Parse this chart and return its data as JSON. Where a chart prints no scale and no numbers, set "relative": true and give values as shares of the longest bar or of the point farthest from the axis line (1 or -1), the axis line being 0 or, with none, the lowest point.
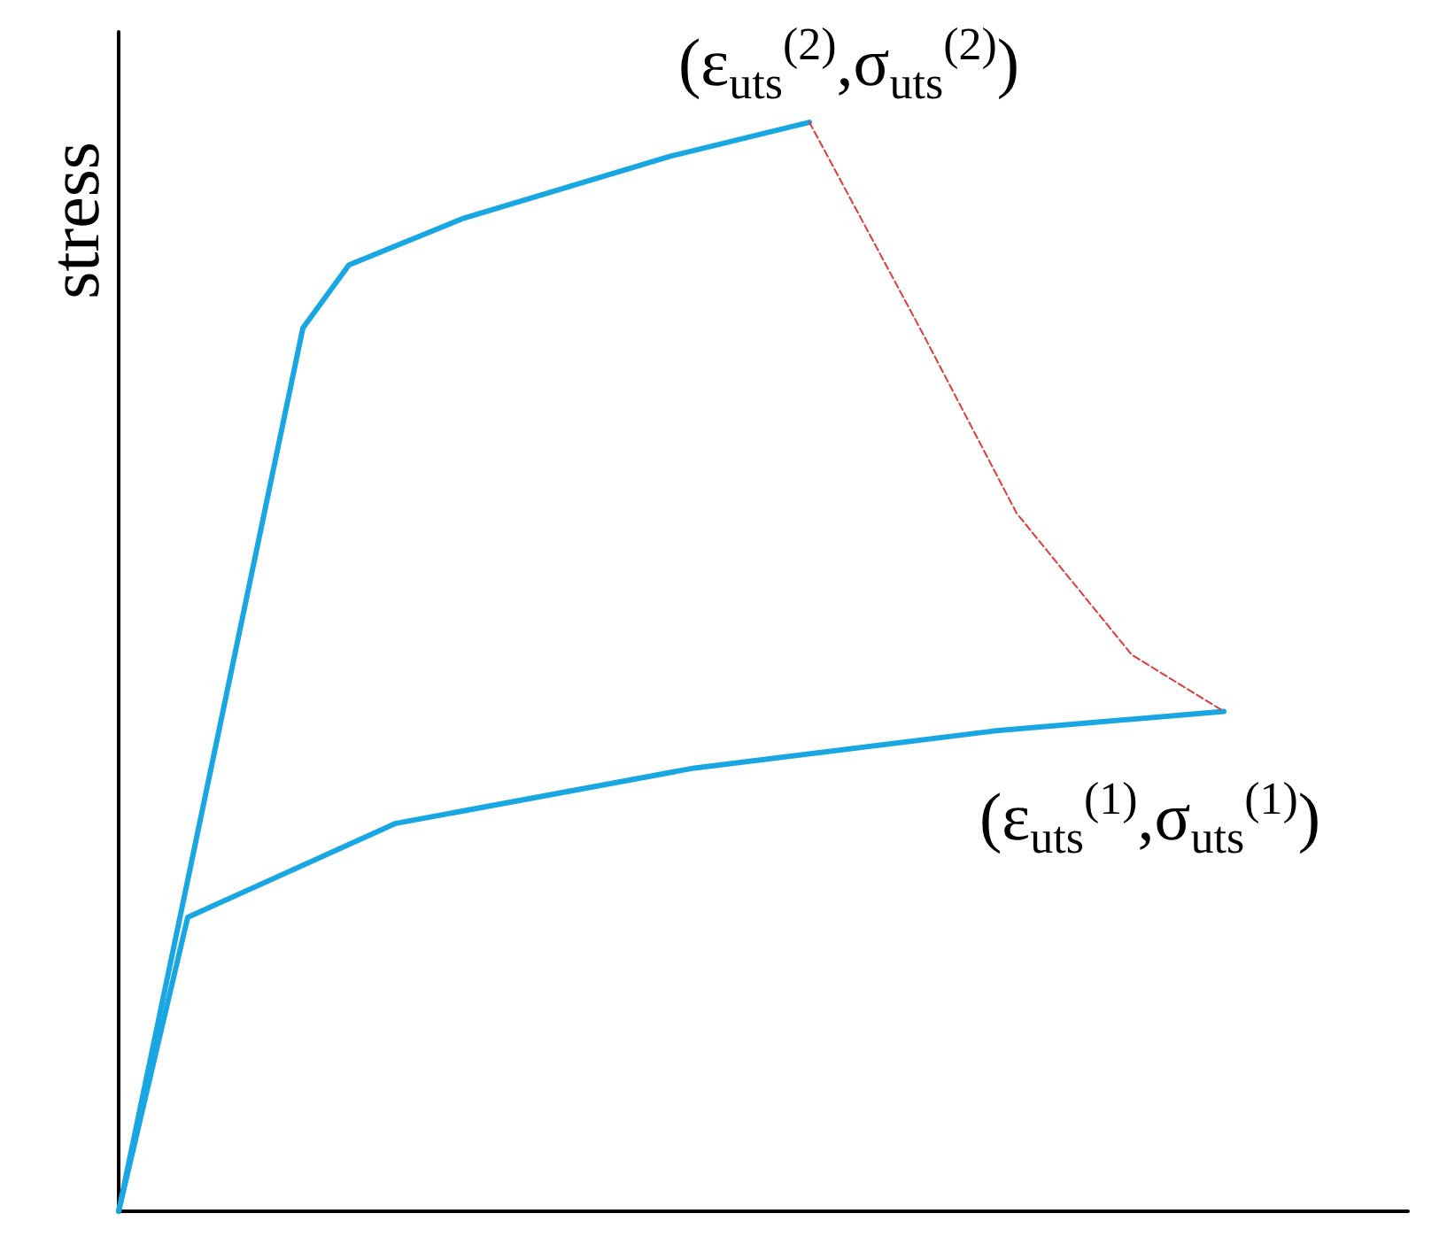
{
  "chart_data": {
    "type": "line",
    "relative": true,
    "ylabel": "stress",
    "grid": false,
    "marker": "none",
    "categories": [
      null,
      null,
      null,
      null,
      null,
      null,
      null,
      null,
      null,
      null,
      null,
      null,
      null,
      null,
      null,
      null,
      null,
      null,
      null,
      null,
      null,
      null,
      null,
      null,
      null,
      null,
      null,
      null,
      null,
      null,
      null,
      null,
      null,
      null,
      null,
      null,
      null,
      null,
      null,
      null,
      null,
      null,
      null,
      null,
      null,
      null,
      null,
      null,
      null,
      null,
      null,
      null,
      null,
      null,
      null,
      null,
      null
    ],
    "series": [
      {
        "color": "#19a7e3",
        "line_style": "solid",
        "values": [
          0,
          null,
          null,
          null,
          null,
          null,
          null,
          null,
          0.811,
          null,
          0.869,
          null,
          null,
          null,
          null,
          0.912,
          null,
          null,
          null,
          null,
          null,
          null,
          null,
          null,
          0.969,
          null,
          null,
          null,
          null,
          null,
          1.0,
          null,
          null,
          null,
          null,
          null,
          null,
          null,
          null,
          null,
          null,
          null,
          null,
          null,
          null,
          null,
          null,
          null,
          null,
          null,
          null,
          null,
          null,
          null,
          null,
          null,
          null
        ]
      },
      {
        "color": "#19a7e3",
        "line_style": "solid",
        "values": [
          0,
          null,
          null,
          0.27,
          null,
          null,
          null,
          null,
          null,
          null,
          null,
          null,
          0.356,
          null,
          null,
          null,
          null,
          null,
          null,
          null,
          null,
          null,
          null,
          null,
          null,
          0.407,
          null,
          null,
          null,
          null,
          null,
          null,
          null,
          null,
          null,
          null,
          null,
          null,
          0.441,
          null,
          null,
          null,
          null,
          null,
          null,
          null,
          null,
          null,
          0.459,
          null,
          null,
          null,
          null,
          null,
          null,
          null,
          null
        ]
      },
      {
        "color": "#e03a3a",
        "line_style": "dashed",
        "values": [
          null,
          null,
          null,
          null,
          null,
          null,
          null,
          null,
          null,
          null,
          null,
          null,
          null,
          null,
          null,
          null,
          null,
          null,
          null,
          null,
          null,
          null,
          null,
          null,
          null,
          null,
          null,
          null,
          null,
          null,
          1.0,
          null,
          null,
          null,
          null,
          0.803,
          null,
          null,
          null,
          0.641,
          null,
          null,
          null,
          null,
          0.511,
          null,
          null,
          null,
          0.459,
          null,
          null,
          null,
          null,
          null,
          null,
          null,
          null
        ]
      }
    ],
    "annotations": [
      "(ε$_{uts}$$^{(2)}$,σ$_{uts}$$^{(2)}$)",
      "(ε$_{uts}$$^{(1)}$,σ$_{uts}$$^{(1)}$)"
    ]
  }
}
